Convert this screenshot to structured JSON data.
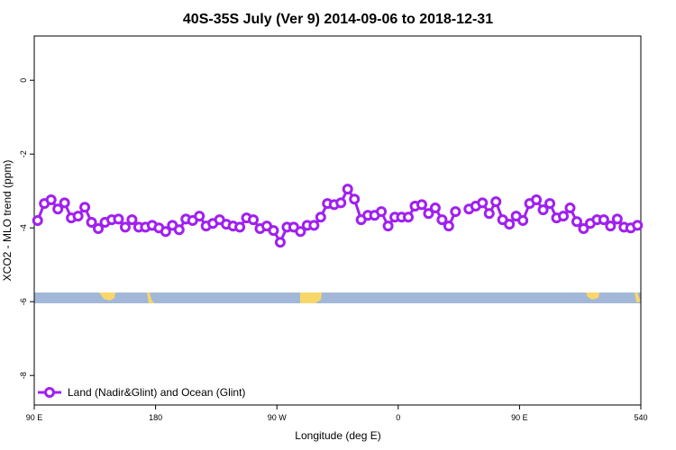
{
  "chart_data": {
    "type": "line",
    "title": "40S-35S July (Ver 9)   2014-09-06 to 2018-12-31",
    "x_label": "Longitude (deg E)",
    "y_label": "XCO2 - MLO trend (ppm)",
    "xlim": [
      90,
      540
    ],
    "xticks": [
      {
        "value": 90,
        "label": "90 E"
      },
      180,
      {
        "value": 270,
        "label": "90 W"
      },
      {
        "value": 360,
        "label": "0"
      },
      {
        "value": 450,
        "label": "90 E"
      },
      540
    ],
    "ylim": [
      -8.8,
      1.2
    ],
    "yticks": [
      0,
      -2,
      -4,
      -6,
      -8
    ],
    "legend": "bottom-left",
    "x": [
      92.5,
      97.5,
      102.5,
      107.5,
      112.5,
      117.5,
      122.5,
      127.5,
      132.5,
      137.5,
      142.5,
      147.5,
      152.5,
      157.5,
      162.5,
      167.5,
      172.5,
      177.5,
      182.5,
      187.5,
      192.5,
      197.5,
      202.5,
      207.5,
      212.5,
      217.5,
      222.5,
      227.5,
      232.5,
      237.5,
      242.5,
      247.5,
      252.5,
      257.5,
      262.5,
      267.5,
      272.5,
      277.5,
      282.5,
      287.5,
      292.5,
      297.5,
      302.5,
      307.5,
      312.5,
      317.5,
      322.5,
      327.5,
      332.5,
      337.5,
      342.5,
      347.5,
      352.5,
      357.5,
      362.5,
      367.5,
      372.5,
      377.5,
      382.5,
      387.5,
      392.5,
      397.5,
      402.5,
      407.5,
      412.5,
      417.5,
      422.5,
      427.5,
      432.5,
      437.5,
      442.5,
      447.5,
      452.5,
      457.5,
      462.5,
      467.5,
      472.5,
      477.5,
      482.5,
      487.5,
      492.5,
      497.5,
      502.5,
      507.5,
      512.5,
      517.5,
      522.5,
      527.5,
      532.5,
      537.5
    ],
    "series": [
      {
        "name": "Land (Nadir&Glint) and Ocean (Glint)",
        "color": "#a020f0",
        "values": [
          -3.8,
          -3.34,
          -3.24,
          -3.49,
          -3.32,
          -3.73,
          -3.68,
          -3.44,
          -3.85,
          -4.02,
          -3.85,
          -3.78,
          -3.76,
          -3.98,
          -3.78,
          -3.98,
          -3.98,
          -3.93,
          -4.0,
          -4.1,
          -3.93,
          -4.05,
          -3.76,
          -3.8,
          -3.68,
          -3.95,
          -3.88,
          -3.78,
          -3.9,
          -3.95,
          -3.98,
          -3.73,
          -3.78,
          -4.02,
          -3.95,
          -4.07,
          -4.39,
          -3.98,
          -3.98,
          -4.1,
          -3.93,
          -3.93,
          -3.71,
          -3.34,
          -3.37,
          -3.32,
          -2.95,
          -3.22,
          -3.78,
          -3.66,
          -3.66,
          -3.56,
          -3.95,
          -3.71,
          -3.71,
          -3.71,
          -3.41,
          -3.37,
          -3.61,
          -3.46,
          -3.78,
          -3.95,
          -3.56,
          null,
          -3.49,
          -3.41,
          -3.32,
          -3.61,
          -3.29,
          -3.78,
          -3.9,
          -3.68,
          -3.8,
          -3.34,
          -3.24,
          -3.51,
          -3.34,
          -3.73,
          -3.68,
          -3.46,
          -3.83,
          -4.02,
          -3.88,
          -3.78,
          -3.78,
          -3.95,
          -3.76,
          -3.98,
          -4.0,
          -3.93
        ]
      }
    ]
  }
}
